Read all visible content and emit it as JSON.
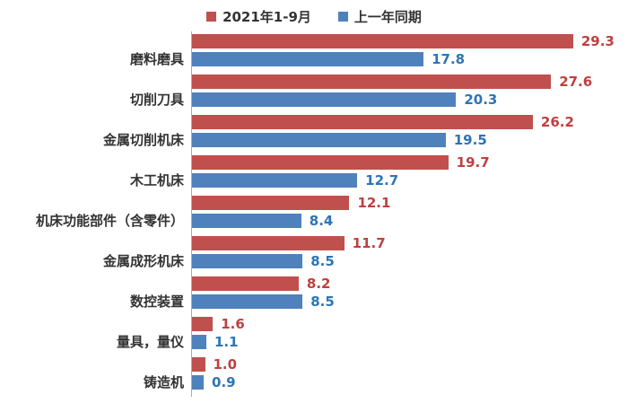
{
  "chart_data": {
    "type": "bar",
    "orientation": "horizontal",
    "categories": [
      "磨料磨具",
      "切削刀具",
      "金属切削机床",
      "木工机床",
      "机床功能部件（含零件）",
      "金属成形机床",
      "数控装置",
      "量具，量仪",
      "铸造机"
    ],
    "series": [
      {
        "name": "2021年1-9月",
        "color": "#C0504D",
        "label_color": "#BE4040",
        "values": [
          29.3,
          27.6,
          26.2,
          19.7,
          12.1,
          11.7,
          8.2,
          1.6,
          1.0
        ]
      },
      {
        "name": "上一年同期",
        "color": "#4F81BD",
        "label_color": "#2E74B5",
        "values": [
          17.8,
          20.3,
          19.5,
          12.7,
          8.4,
          8.5,
          8.5,
          1.1,
          0.9
        ]
      }
    ],
    "legend_position": "top",
    "value_labels": "outside-end, one decimal",
    "grid": false,
    "value_axis_visible": false,
    "category_axis_line_color": "#ABABAB",
    "background": "#FFFFFF"
  }
}
